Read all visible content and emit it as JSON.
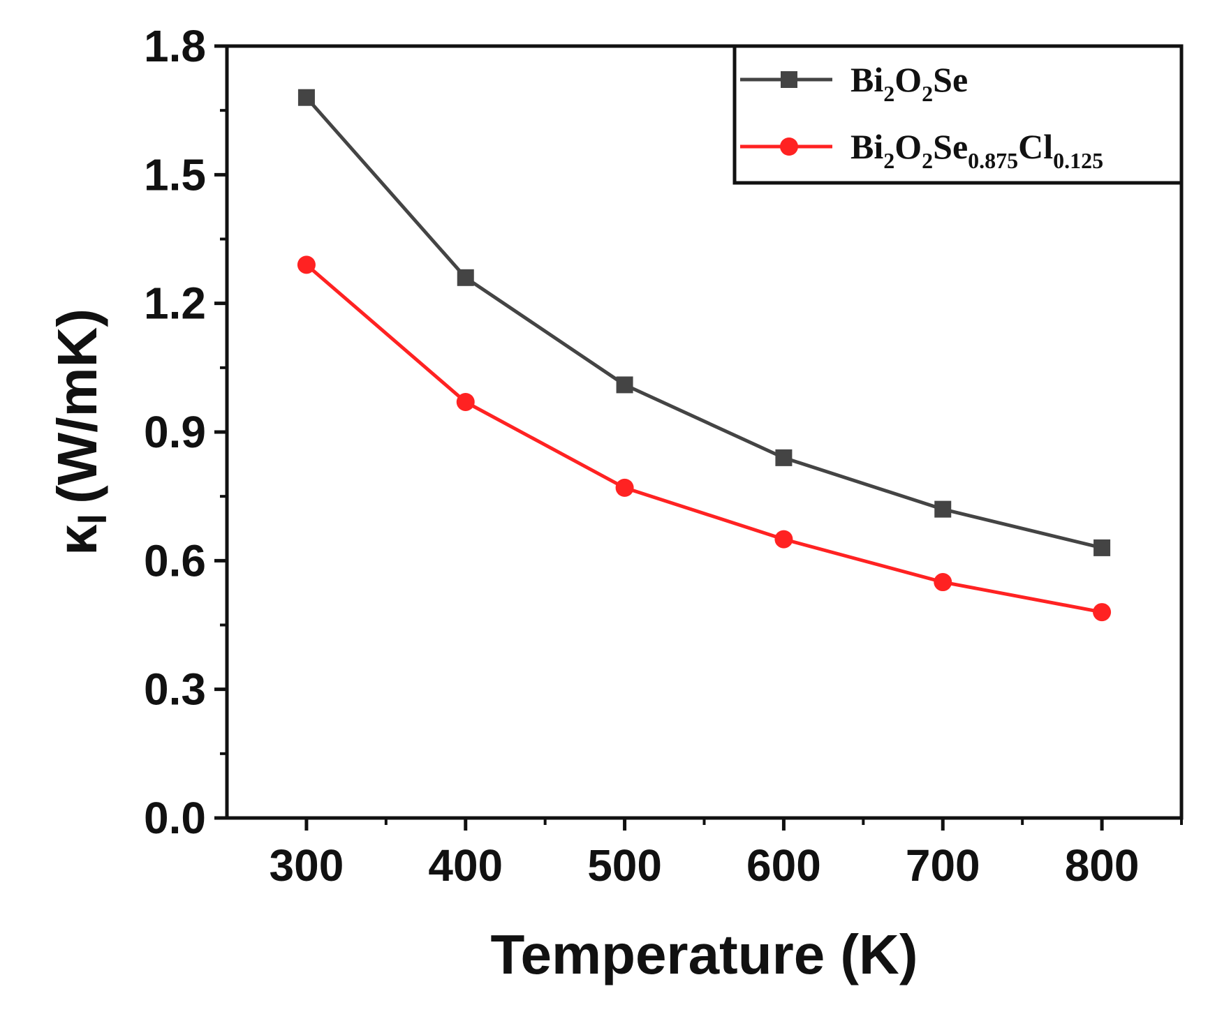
{
  "chart_data": {
    "type": "line",
    "title": "",
    "xlabel": "Temperature (K)",
    "ylabel": {
      "main": "κ",
      "sub": "l",
      "unit": "(W/mK)"
    },
    "xlim": [
      250,
      850
    ],
    "ylim": [
      0,
      1.8
    ],
    "x_ticks": [
      300,
      400,
      500,
      600,
      700,
      800
    ],
    "y_ticks": [
      "0.0",
      "0.3",
      "0.6",
      "0.9",
      "1.2",
      "1.5",
      "1.8"
    ],
    "x_tick_labels": [
      "300",
      "400",
      "500",
      "600",
      "700",
      "800"
    ],
    "x": [
      300,
      400,
      500,
      600,
      700,
      800
    ],
    "grid": false,
    "legend_position": "top-right",
    "series": [
      {
        "name": "Bi2O2Se",
        "name_parts": [
          {
            "t": "Bi",
            "sub": false
          },
          {
            "t": "2",
            "sub": true
          },
          {
            "t": "O",
            "sub": false
          },
          {
            "t": "2",
            "sub": true
          },
          {
            "t": "Se",
            "sub": false
          }
        ],
        "values": [
          1.68,
          1.26,
          1.01,
          0.84,
          0.72,
          0.63
        ],
        "color": "#444444",
        "marker": "square"
      },
      {
        "name": "Bi2O2Se0.875Cl0.125",
        "name_parts": [
          {
            "t": "Bi",
            "sub": false
          },
          {
            "t": "2",
            "sub": true
          },
          {
            "t": "O",
            "sub": false
          },
          {
            "t": "2",
            "sub": true
          },
          {
            "t": "Se",
            "sub": false
          },
          {
            "t": "0.875",
            "sub": true
          },
          {
            "t": "Cl",
            "sub": false
          },
          {
            "t": "0.125",
            "sub": true
          }
        ],
        "values": [
          1.29,
          0.97,
          0.77,
          0.65,
          0.55,
          0.48
        ],
        "color": "#ff2222",
        "marker": "circle"
      }
    ]
  }
}
